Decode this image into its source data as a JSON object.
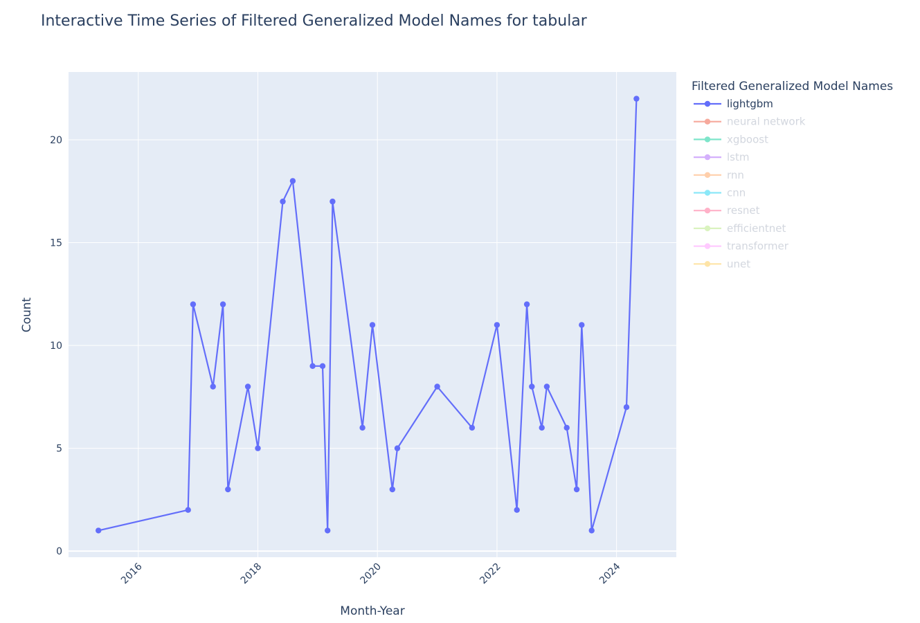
{
  "chart_data": {
    "type": "line",
    "title": "Interactive Time Series of Filtered Generalized Model Names for tabular",
    "xlabel": "Month-Year",
    "ylabel": "Count",
    "x_tick_labels": [
      "2016",
      "2018",
      "2020",
      "2022",
      "2024"
    ],
    "y_tick_labels": [
      "0",
      "5",
      "10",
      "15",
      "20"
    ],
    "ylim": [
      -0.3,
      23.3
    ],
    "xlim": [
      "2014-11",
      "2025-01"
    ],
    "grid": true,
    "legend_title": "Filtered Generalized Model Names",
    "legend_position": "right",
    "series": [
      {
        "name": "lightgbm",
        "color": "#636efa",
        "visible": true,
        "x": [
          "2015-05",
          "2016-11",
          "2016-12",
          "2017-04",
          "2017-06",
          "2017-07",
          "2017-11",
          "2018-01",
          "2018-06",
          "2018-08",
          "2018-12",
          "2019-02",
          "2019-03",
          "2019-04",
          "2019-10",
          "2019-12",
          "2020-04",
          "2020-05",
          "2021-01",
          "2021-08",
          "2022-01",
          "2022-05",
          "2022-07",
          "2022-08",
          "2022-10",
          "2022-11",
          "2023-03",
          "2023-05",
          "2023-06",
          "2023-08",
          "2024-03",
          "2024-05"
        ],
        "values": [
          1,
          2,
          12,
          8,
          12,
          3,
          8,
          5,
          17,
          18,
          9,
          9,
          1,
          17,
          6,
          11,
          3,
          5,
          8,
          6,
          11,
          2,
          12,
          8,
          6,
          8,
          6,
          3,
          11,
          1,
          7,
          22
        ]
      },
      {
        "name": "neural network",
        "color": "#ef553b",
        "visible": false,
        "x": [],
        "values": []
      },
      {
        "name": "xgboost",
        "color": "#00cc96",
        "visible": false,
        "x": [],
        "values": []
      },
      {
        "name": "lstm",
        "color": "#ab63fa",
        "visible": false,
        "x": [],
        "values": []
      },
      {
        "name": "rnn",
        "color": "#ffa15a",
        "visible": false,
        "x": [],
        "values": []
      },
      {
        "name": "cnn",
        "color": "#19d3f3",
        "visible": false,
        "x": [],
        "values": []
      },
      {
        "name": "resnet",
        "color": "#ff6692",
        "visible": false,
        "x": [],
        "values": []
      },
      {
        "name": "efficientnet",
        "color": "#b6e880",
        "visible": false,
        "x": [],
        "values": []
      },
      {
        "name": "transformer",
        "color": "#ff97ff",
        "visible": false,
        "x": [],
        "values": []
      },
      {
        "name": "unet",
        "color": "#fecb52",
        "visible": false,
        "x": [],
        "values": []
      }
    ]
  },
  "colors": {
    "plot_background": "#e5ecf6",
    "grid": "#ffffff",
    "text": "#2a3f5f",
    "legend_hidden_text": "#a6afbf"
  }
}
